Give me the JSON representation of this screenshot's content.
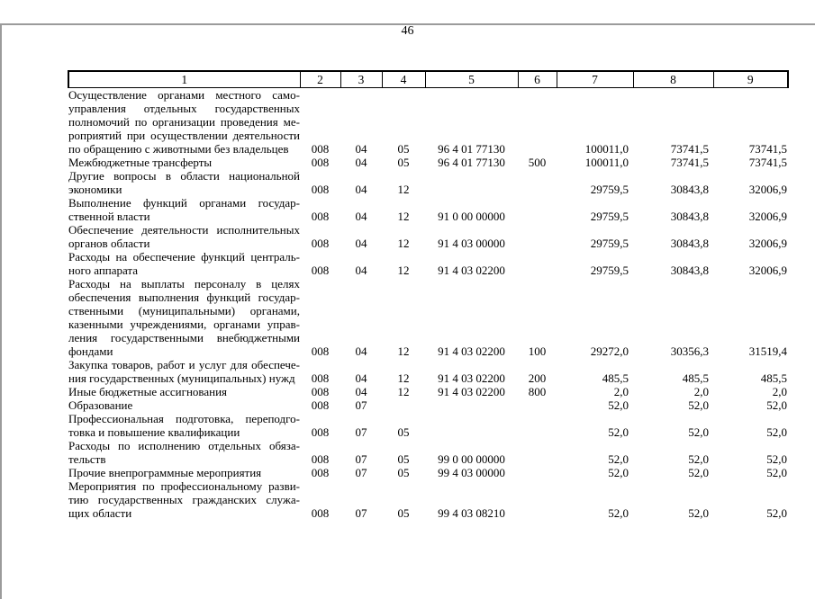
{
  "page": {
    "number": "46"
  },
  "table": {
    "header": [
      "1",
      "2",
      "3",
      "4",
      "5",
      "6",
      "7",
      "8",
      "9"
    ],
    "rows": [
      {
        "label_lines": [
          "Осуществление органами местного само-",
          "управления отдельных государственных",
          "полномочий по организации проведения ме-",
          "роприятий при осуществлении деятельности",
          "по обращению с животными без владельцев"
        ],
        "cells": [
          "008",
          "04",
          "05",
          "96 4 01 77130",
          "",
          "100011,0",
          "73741,5",
          "73741,5"
        ]
      },
      {
        "label_lines": [
          "Межбюджетные трансферты"
        ],
        "cells": [
          "008",
          "04",
          "05",
          "96 4 01 77130",
          "500",
          "100011,0",
          "73741,5",
          "73741,5"
        ]
      },
      {
        "label_lines": [
          "Другие вопросы в области национальной",
          "экономики"
        ],
        "cells": [
          "008",
          "04",
          "12",
          "",
          "",
          "29759,5",
          "30843,8",
          "32006,9"
        ]
      },
      {
        "label_lines": [
          "Выполнение функций органами государ-",
          "ственной власти"
        ],
        "cells": [
          "008",
          "04",
          "12",
          "91 0 00 00000",
          "",
          "29759,5",
          "30843,8",
          "32006,9"
        ]
      },
      {
        "label_lines": [
          "Обеспечение деятельности исполнительных",
          "органов области"
        ],
        "cells": [
          "008",
          "04",
          "12",
          "91 4 03 00000",
          "",
          "29759,5",
          "30843,8",
          "32006,9"
        ]
      },
      {
        "label_lines": [
          "Расходы на обеспечение функций централь-",
          "ного аппарата"
        ],
        "cells": [
          "008",
          "04",
          "12",
          "91 4 03 02200",
          "",
          "29759,5",
          "30843,8",
          "32006,9"
        ]
      },
      {
        "label_lines": [
          "Расходы на выплаты персоналу в целях",
          "обеспечения выполнения функций государ-",
          "ственными (муниципальными) органами,",
          "казенными учреждениями, органами управ-",
          "ления государственными внебюджетными",
          "фондами"
        ],
        "cells": [
          "008",
          "04",
          "12",
          "91 4 03 02200",
          "100",
          "29272,0",
          "30356,3",
          "31519,4"
        ]
      },
      {
        "label_lines": [
          "Закупка товаров, работ и услуг для обеспече-",
          "ния государственных (муниципальных) нужд"
        ],
        "cells": [
          "008",
          "04",
          "12",
          "91 4 03 02200",
          "200",
          "485,5",
          "485,5",
          "485,5"
        ]
      },
      {
        "label_lines": [
          "Иные бюджетные ассигнования"
        ],
        "cells": [
          "008",
          "04",
          "12",
          "91 4 03 02200",
          "800",
          "2,0",
          "2,0",
          "2,0"
        ]
      },
      {
        "label_lines": [
          "Образование"
        ],
        "cells": [
          "008",
          "07",
          "",
          "",
          "",
          "52,0",
          "52,0",
          "52,0"
        ]
      },
      {
        "label_lines": [
          "Профессиональная подготовка, переподго-",
          "товка и повышение квалификации"
        ],
        "cells": [
          "008",
          "07",
          "05",
          "",
          "",
          "52,0",
          "52,0",
          "52,0"
        ]
      },
      {
        "label_lines": [
          "Расходы по исполнению отдельных обяза-",
          "тельств"
        ],
        "cells": [
          "008",
          "07",
          "05",
          "99 0 00 00000",
          "",
          "52,0",
          "52,0",
          "52,0"
        ]
      },
      {
        "label_lines": [
          "Прочие внепрограммные мероприятия"
        ],
        "cells": [
          "008",
          "07",
          "05",
          "99 4 03 00000",
          "",
          "52,0",
          "52,0",
          "52,0"
        ]
      },
      {
        "label_lines": [
          "Мероприятия по профессиональному разви-",
          "тию государственных гражданских служа-",
          "щих области"
        ],
        "cells": [
          "008",
          "07",
          "05",
          "99 4 03 08210",
          "",
          "52,0",
          "52,0",
          "52,0"
        ]
      }
    ]
  }
}
